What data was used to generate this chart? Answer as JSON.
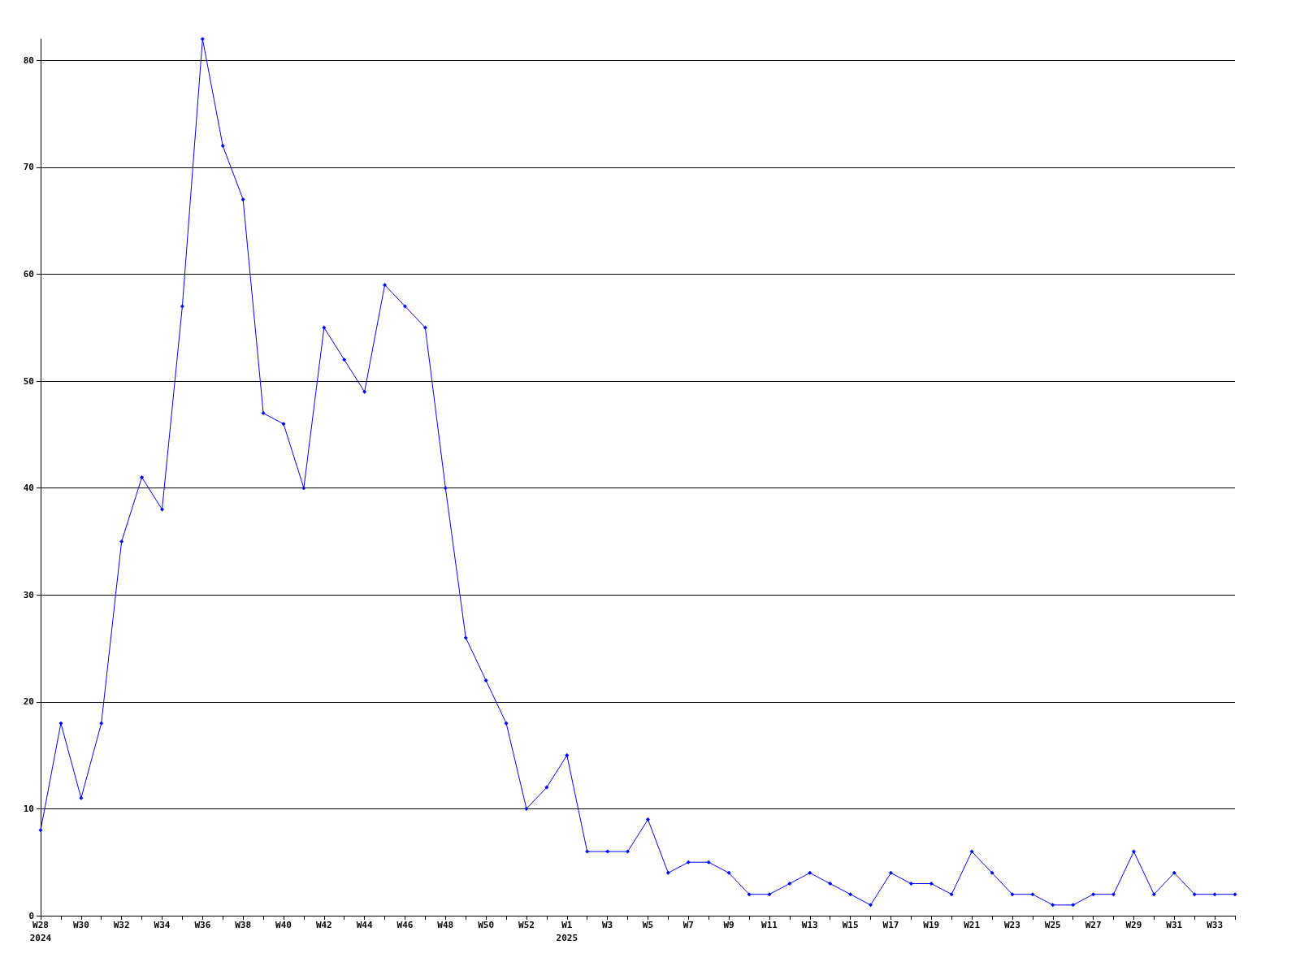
{
  "chart_data": {
    "type": "line",
    "categories": [
      "W28",
      null,
      "W30",
      null,
      "W32",
      null,
      "W34",
      null,
      "W36",
      null,
      "W38",
      null,
      "W40",
      null,
      "W42",
      null,
      "W44",
      null,
      "W46",
      null,
      "W48",
      null,
      "W50",
      null,
      "W52",
      null,
      "W1",
      null,
      "W3",
      null,
      "W5",
      null,
      "W7",
      null,
      "W9",
      null,
      "W11",
      null,
      "W13",
      null,
      "W15",
      null,
      "W17",
      null,
      "W19",
      null,
      "W21",
      null,
      "W23",
      null,
      "W25",
      null,
      "W27",
      null,
      "W29",
      null,
      "W31",
      null,
      "W33",
      null
    ],
    "series": [
      {
        "color": "#0000ff",
        "values": [
          8,
          18,
          11,
          18,
          35,
          41,
          38,
          57,
          82,
          72,
          67,
          47,
          46,
          40,
          55,
          52,
          49,
          59,
          57,
          55,
          40,
          26,
          22,
          18,
          10,
          12,
          15,
          6,
          6,
          6,
          9,
          4,
          5,
          5,
          4,
          2,
          2,
          3,
          4,
          3,
          2,
          1,
          4,
          3,
          3,
          2,
          6,
          4,
          2,
          2,
          1,
          1,
          2,
          2,
          6,
          2,
          4,
          2,
          2,
          2
        ]
      }
    ],
    "ylim": [
      0,
      82
    ],
    "yticks": [
      0,
      10,
      20,
      30,
      40,
      50,
      60,
      70,
      80
    ],
    "grid": "y",
    "marker": "diamond",
    "line_style": "solid",
    "annotations": [
      "2024",
      "2025"
    ]
  }
}
